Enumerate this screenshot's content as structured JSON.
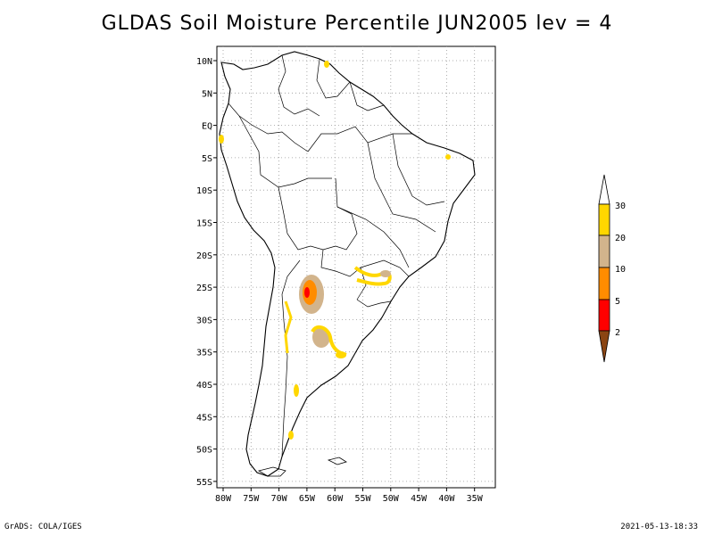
{
  "title": "GLDAS Soil Moisture Percentile JUN2005 lev = 4",
  "footer": {
    "left": "GrADS: COLA/IGES",
    "right": "2021-05-13-18:33"
  },
  "map": {
    "lat_labels": [
      "10N",
      "5N",
      "EQ",
      "5S",
      "10S",
      "15S",
      "20S",
      "25S",
      "30S",
      "35S",
      "40S",
      "45S",
      "50S",
      "55S"
    ],
    "lon_labels": [
      "80W",
      "75W",
      "70W",
      "65W",
      "60W",
      "55W",
      "50W",
      "45W",
      "40W",
      "35W"
    ],
    "region": "South America",
    "grid": true
  },
  "legend": {
    "labels": [
      "30",
      "20",
      "10",
      "5",
      "2"
    ],
    "colors": {
      "above30": "#ffffff",
      "20-30": "#ffd700",
      "10-20": "#d2b48c",
      "5-10": "#ff8c00",
      "2-5": "#ff0000",
      "below2": "#8b4513"
    }
  }
}
